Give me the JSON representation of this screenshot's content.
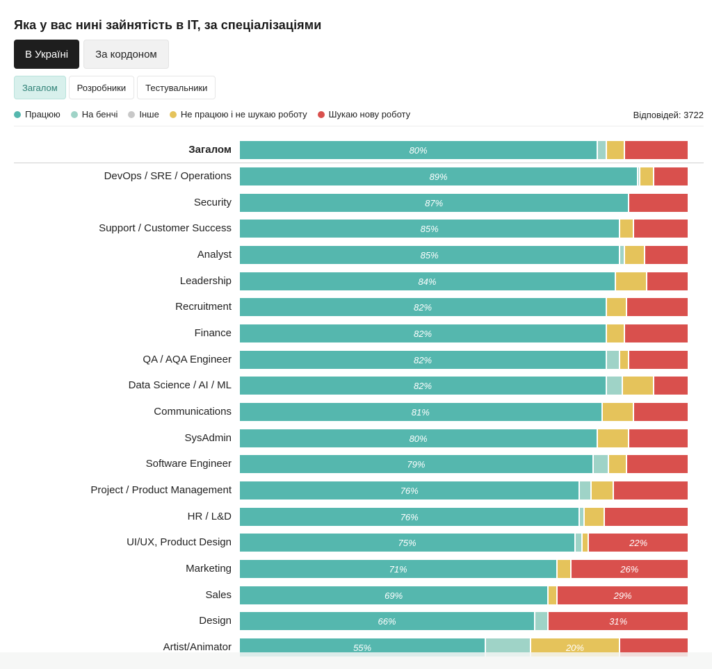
{
  "title": "Яка у вас нині зайнятість в IT, за спеціалізаціями",
  "tabs": [
    "В Україні",
    "За кордоном"
  ],
  "subtabs": [
    "Загалом",
    "Розробники",
    "Тестувальники"
  ],
  "responses": "Відповідей: 3722",
  "colors": {
    "working": "#55b7ae",
    "bench": "#9fd3c7",
    "other": "#c8c8c8",
    "notlooking": "#e5c35b",
    "looking": "#d9504d"
  },
  "chart_data": {
    "type": "bar",
    "orientation": "horizontal",
    "stacked": true,
    "normalized_percent": true,
    "legend_position": "top-left",
    "series": [
      {
        "name": "Працюю",
        "key": "working"
      },
      {
        "name": "На бенчі",
        "key": "bench"
      },
      {
        "name": "Інше",
        "key": "other"
      },
      {
        "name": "Не працюю і не шукаю роботу",
        "key": "notlooking"
      },
      {
        "name": "Шукаю нову роботу",
        "key": "looking"
      }
    ],
    "rows": [
      {
        "label": "Загалом",
        "bold": true,
        "values": [
          80,
          2,
          0,
          4,
          14
        ]
      },
      {
        "label": "DevOps / SRE / Operations",
        "values": [
          89,
          0.5,
          0,
          3,
          7.5
        ]
      },
      {
        "label": "Security",
        "values": [
          87,
          0,
          0,
          0,
          13
        ]
      },
      {
        "label": "Support / Customer Success",
        "values": [
          85,
          0,
          0,
          3,
          12
        ]
      },
      {
        "label": "Analyst",
        "values": [
          85,
          1,
          0,
          4.5,
          9.5
        ]
      },
      {
        "label": "Leadership",
        "values": [
          84,
          0,
          0,
          7,
          9
        ]
      },
      {
        "label": "Recruitment",
        "values": [
          82,
          0,
          0,
          4.5,
          13.5
        ]
      },
      {
        "label": "Finance",
        "values": [
          82,
          0,
          0,
          4,
          14
        ]
      },
      {
        "label": "QA / AQA Engineer",
        "values": [
          82,
          3,
          0,
          2,
          13
        ]
      },
      {
        "label": "Data Science / AI / ML",
        "values": [
          82,
          3.5,
          0,
          7,
          7.5
        ]
      },
      {
        "label": "Communications",
        "values": [
          81,
          0,
          0,
          7,
          12
        ]
      },
      {
        "label": "SysAdmin",
        "values": [
          80,
          0,
          0,
          7,
          13
        ]
      },
      {
        "label": "Software Engineer",
        "values": [
          79,
          3.5,
          0,
          4,
          13.5
        ]
      },
      {
        "label": "Project / Product Management",
        "values": [
          76,
          2.5,
          0,
          5,
          16.5
        ]
      },
      {
        "label": "HR / L&D",
        "values": [
          76,
          1,
          0,
          4.5,
          18.5
        ]
      },
      {
        "label": "UI/UX, Product Design",
        "values": [
          75,
          1.5,
          0,
          1.5,
          22
        ]
      },
      {
        "label": "Marketing",
        "values": [
          71,
          0,
          0,
          3,
          26
        ]
      },
      {
        "label": "Sales",
        "values": [
          69,
          0,
          0,
          2,
          29
        ]
      },
      {
        "label": "Design",
        "values": [
          66,
          3,
          0,
          0,
          31
        ]
      },
      {
        "label": "Artist/Animator",
        "values": [
          55,
          10,
          0,
          20,
          15
        ]
      }
    ],
    "shown_labels": {
      "working": "all",
      "looking_min": 20,
      "notlooking_min": 20
    }
  }
}
